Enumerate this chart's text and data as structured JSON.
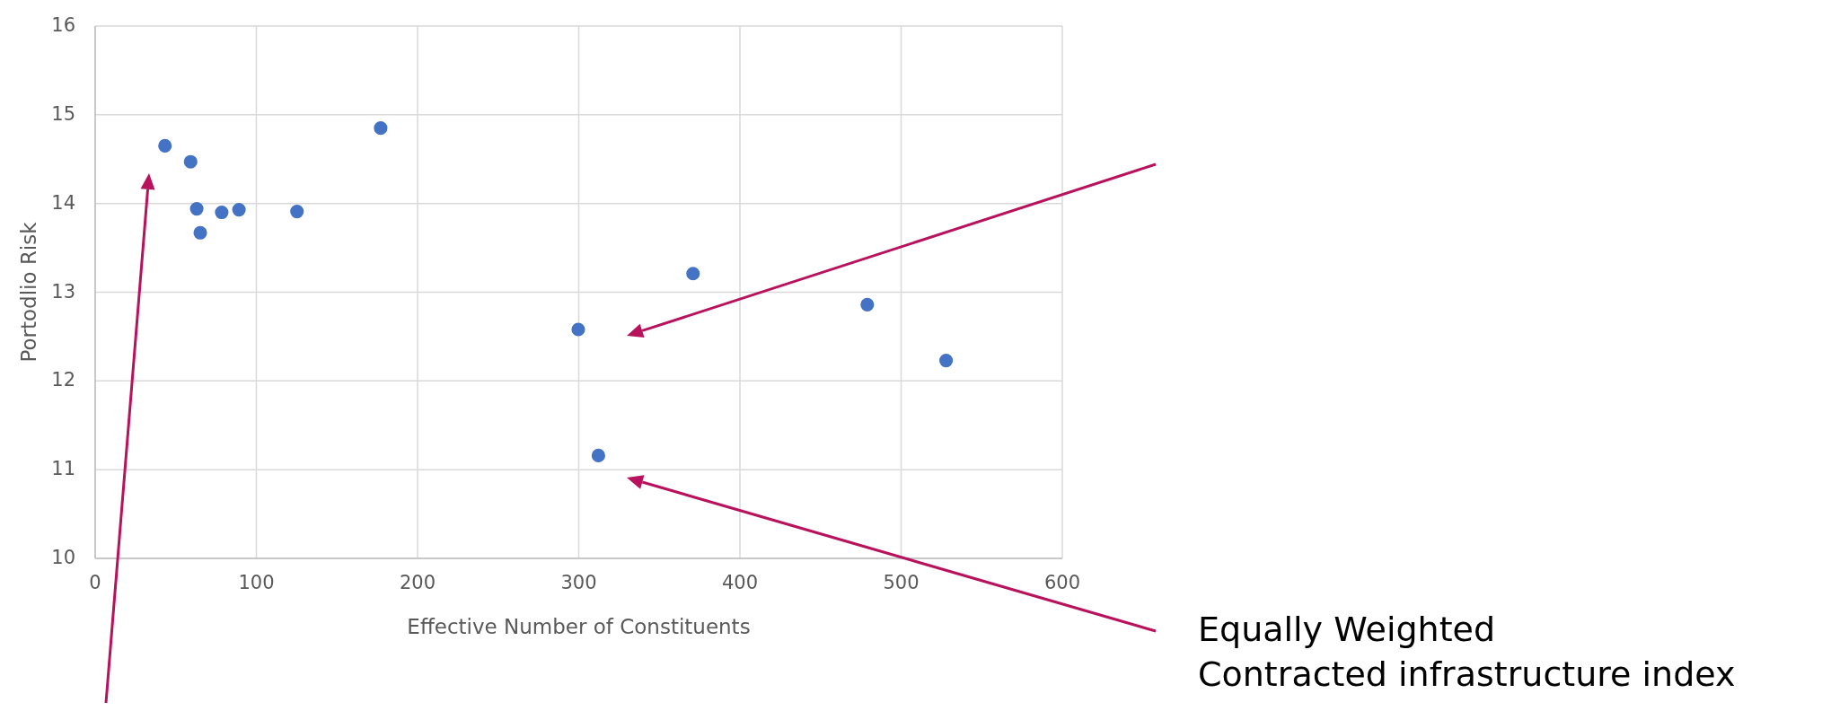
{
  "chart_data": {
    "type": "scatter",
    "xlabel": "Effective Number of Constituents",
    "ylabel": "Portodlio Risk",
    "x": [
      43.3,
      59.2,
      63.0,
      65.2,
      78.5,
      89.2,
      125.2,
      177.1,
      299.7,
      312.2,
      370.9,
      479,
      527.9
    ],
    "series": [
      {
        "color": "#4472c4",
        "values": [
          14.65,
          14.47,
          13.94,
          13.67,
          13.9,
          13.93,
          13.91,
          14.85,
          12.58,
          11.16,
          13.21,
          12.86,
          12.23
        ]
      }
    ],
    "xlim": [
      0,
      600
    ],
    "xticks": [
      0,
      100,
      200,
      300,
      400,
      500,
      600
    ],
    "ylim": [
      10,
      16
    ],
    "yticks": [
      10,
      11,
      12,
      13,
      14,
      15,
      16
    ],
    "grid": true,
    "marker": "circle",
    "annotations": [
      "Equally Weighted\nContracted infrastructure index"
    ]
  }
}
